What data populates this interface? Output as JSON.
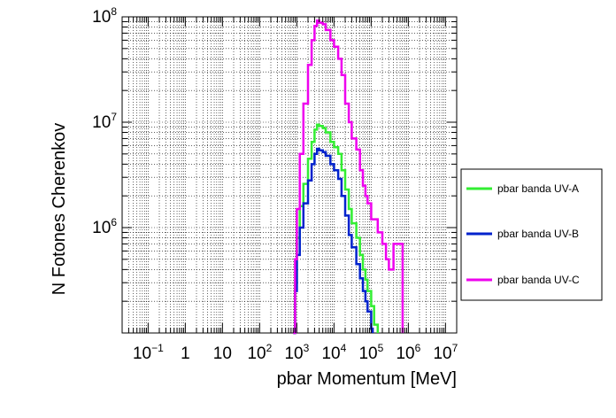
{
  "chart_data": {
    "type": "line",
    "title": "",
    "xlabel": "pbar Momentum [MeV]",
    "ylabel": "N Fotones Cherenkov",
    "xscale": "log",
    "yscale": "log",
    "xlim": [
      0.02,
      20000000
    ],
    "ylim": [
      100000,
      100000000
    ],
    "grid": true,
    "legend_position": "right",
    "x_ticks": [
      {
        "base": "10",
        "exp": "−1",
        "value": 0.1
      },
      {
        "base": "1",
        "exp": "",
        "value": 1
      },
      {
        "base": "10",
        "exp": "",
        "value": 10
      },
      {
        "base": "10",
        "exp": "2",
        "value": 100
      },
      {
        "base": "10",
        "exp": "3",
        "value": 1000
      },
      {
        "base": "10",
        "exp": "4",
        "value": 10000
      },
      {
        "base": "10",
        "exp": "5",
        "value": 100000
      },
      {
        "base": "10",
        "exp": "6",
        "value": 1000000
      },
      {
        "base": "10",
        "exp": "7",
        "value": 10000000
      }
    ],
    "y_ticks": [
      {
        "base": "10",
        "exp": "6",
        "value": 1000000
      },
      {
        "base": "10",
        "exp": "7",
        "value": 10000000
      },
      {
        "base": "10",
        "exp": "8",
        "value": 100000000
      }
    ],
    "series": [
      {
        "name": "pbar banda UV-A",
        "color": "#33ee33",
        "points": [
          [
            800,
            100000
          ],
          [
            900,
            300000
          ],
          [
            1000,
            800000
          ],
          [
            1200,
            1600000
          ],
          [
            1500,
            2600000
          ],
          [
            2000,
            4500000
          ],
          [
            2500,
            6500000
          ],
          [
            3000,
            8500000
          ],
          [
            3500,
            9500000
          ],
          [
            4000,
            9200000
          ],
          [
            5000,
            8800000
          ],
          [
            6000,
            8000000
          ],
          [
            8000,
            6500000
          ],
          [
            10000,
            5800000
          ],
          [
            13000,
            5000000
          ],
          [
            16000,
            3500000
          ],
          [
            20000,
            2300000
          ],
          [
            25000,
            1500000
          ],
          [
            30000,
            1100000
          ],
          [
            40000,
            800000
          ],
          [
            50000,
            550000
          ],
          [
            60000,
            400000
          ],
          [
            70000,
            320000
          ],
          [
            80000,
            250000
          ],
          [
            100000,
            180000
          ],
          [
            120000,
            120000
          ],
          [
            150000,
            100000
          ]
        ]
      },
      {
        "name": "pbar banda UV-B",
        "color": "#0022cc",
        "points": [
          [
            800,
            100000
          ],
          [
            900,
            250000
          ],
          [
            1000,
            550000
          ],
          [
            1200,
            1000000
          ],
          [
            1500,
            1700000
          ],
          [
            2000,
            2800000
          ],
          [
            2500,
            4000000
          ],
          [
            3000,
            5000000
          ],
          [
            3500,
            5600000
          ],
          [
            4000,
            5400000
          ],
          [
            5000,
            5200000
          ],
          [
            6000,
            4800000
          ],
          [
            8000,
            4000000
          ],
          [
            10000,
            3500000
          ],
          [
            13000,
            2900000
          ],
          [
            16000,
            2000000
          ],
          [
            20000,
            1300000
          ],
          [
            25000,
            850000
          ],
          [
            30000,
            650000
          ],
          [
            40000,
            450000
          ],
          [
            50000,
            330000
          ],
          [
            60000,
            250000
          ],
          [
            70000,
            200000
          ],
          [
            80000,
            160000
          ],
          [
            100000,
            110000
          ],
          [
            110000,
            100000
          ]
        ]
      },
      {
        "name": "pbar banda UV-C",
        "color": "#ee00ee",
        "points": [
          [
            800,
            100000
          ],
          [
            900,
            500000
          ],
          [
            1000,
            1500000
          ],
          [
            1200,
            5000000
          ],
          [
            1500,
            15000000
          ],
          [
            2000,
            35000000
          ],
          [
            2500,
            60000000
          ],
          [
            3000,
            82000000
          ],
          [
            3500,
            92000000
          ],
          [
            4000,
            88000000
          ],
          [
            5000,
            85000000
          ],
          [
            6000,
            75000000
          ],
          [
            8000,
            60000000
          ],
          [
            10000,
            52000000
          ],
          [
            13000,
            40000000
          ],
          [
            16000,
            28000000
          ],
          [
            20000,
            15000000
          ],
          [
            25000,
            10000000
          ],
          [
            30000,
            7000000
          ],
          [
            40000,
            5500000
          ],
          [
            50000,
            3500000
          ],
          [
            60000,
            2500000
          ],
          [
            70000,
            2000000
          ],
          [
            80000,
            1700000
          ],
          [
            100000,
            1200000
          ],
          [
            150000,
            900000
          ],
          [
            200000,
            700000
          ],
          [
            250000,
            500000
          ],
          [
            300000,
            400000
          ],
          [
            400000,
            700000
          ],
          [
            500000,
            700000
          ],
          [
            600000,
            700000
          ],
          [
            700000,
            200000
          ]
        ]
      }
    ]
  }
}
